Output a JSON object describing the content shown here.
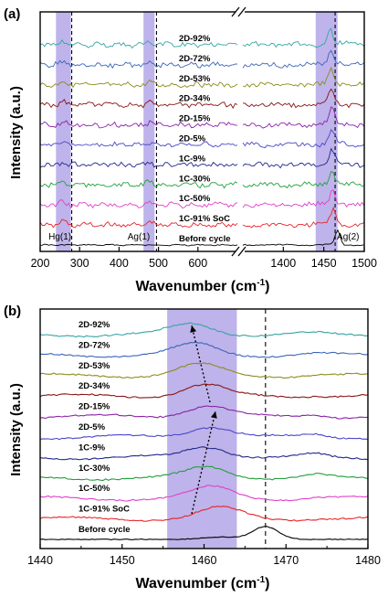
{
  "chart_data": [
    {
      "type": "line",
      "panel_label": "(a)",
      "xlabel": "Wavenumber (cm",
      "xlabel_sup": "-1",
      "xlabel_close": ")",
      "ylabel": "Intensity (a.u.)",
      "x_break": true,
      "segments": [
        {
          "xlim": [
            200,
            700
          ],
          "ticks": [
            200,
            300,
            400,
            500,
            600
          ],
          "tick_labels": [
            "200",
            "300",
            "400",
            "500",
            "600"
          ]
        },
        {
          "xlim": [
            1350,
            1500
          ],
          "ticks": [
            1400,
            1450,
            1500
          ],
          "tick_labels": [
            "1400",
            "1450",
            "1500"
          ]
        }
      ],
      "shaded_bands": [
        [
          240,
          278
        ],
        [
          462,
          490
        ],
        [
          1440,
          1467
        ]
      ],
      "dashed_lines": [
        280,
        495,
        1464
      ],
      "peak_annotations": [
        {
          "label": "Hg(1)",
          "x": 250
        },
        {
          "label": "Ag(1)",
          "x": 450
        },
        {
          "label": "Ag(2)",
          "x": 1480
        }
      ],
      "series": [
        {
          "name": "Before cycle",
          "color": "#000000",
          "peak_x": 1467
        },
        {
          "name": "1C-91% SoC",
          "color": "#e8242b",
          "peak_x": 1462
        },
        {
          "name": "1C-50%",
          "color": "#e040c8",
          "peak_x": 1461
        },
        {
          "name": "1C-30%",
          "color": "#20a03c",
          "peak_x": 1460
        },
        {
          "name": "1C-9%",
          "color": "#202a8c",
          "peak_x": 1460
        },
        {
          "name": "2D-5%",
          "color": "#4a48c8",
          "peak_x": 1460
        },
        {
          "name": "2D-15%",
          "color": "#8a22a8",
          "peak_x": 1460
        },
        {
          "name": "2D-34%",
          "color": "#8a1414",
          "peak_x": 1459
        },
        {
          "name": "2D-53%",
          "color": "#8c8c1c",
          "peak_x": 1459
        },
        {
          "name": "2D-72%",
          "color": "#3a66b8",
          "peak_x": 1459
        },
        {
          "name": "2D-92%",
          "color": "#36a4a4",
          "peak_x": 1458
        }
      ]
    },
    {
      "type": "line",
      "panel_label": "(b)",
      "xlabel": "Wavenumber (cm",
      "xlabel_sup": "-1",
      "xlabel_close": ")",
      "ylabel": "Intensity (a.u.)",
      "xlim": [
        1440,
        1480
      ],
      "ticks": [
        1440,
        1450,
        1460,
        1470,
        1480
      ],
      "tick_labels": [
        "1440",
        "1450",
        "1460",
        "1470",
        "1480"
      ],
      "shaded_band": [
        1455.5,
        1464
      ],
      "dashed_line": 1467.5,
      "series": [
        {
          "name": "Before cycle",
          "color": "#000000",
          "peak_x": 1467.5
        },
        {
          "name": "1C-91% SoC",
          "color": "#e8242b",
          "peak_x": 1462
        },
        {
          "name": "1C-50%",
          "color": "#e040c8",
          "peak_x": 1461
        },
        {
          "name": "1C-30%",
          "color": "#20a03c",
          "peak_x": 1460.5
        },
        {
          "name": "1C-9%",
          "color": "#202a8c",
          "peak_x": 1460.3
        },
        {
          "name": "2D-5%",
          "color": "#4a48c8",
          "peak_x": 1460.8
        },
        {
          "name": "2D-15%",
          "color": "#8a22a8",
          "peak_x": 1460.4
        },
        {
          "name": "2D-34%",
          "color": "#8a1414",
          "peak_x": 1460
        },
        {
          "name": "2D-53%",
          "color": "#8c8c1c",
          "peak_x": 1459.5
        },
        {
          "name": "2D-72%",
          "color": "#3a66b8",
          "peak_x": 1459
        },
        {
          "name": "2D-92%",
          "color": "#36a4a4",
          "peak_x": 1458.5
        }
      ]
    }
  ]
}
